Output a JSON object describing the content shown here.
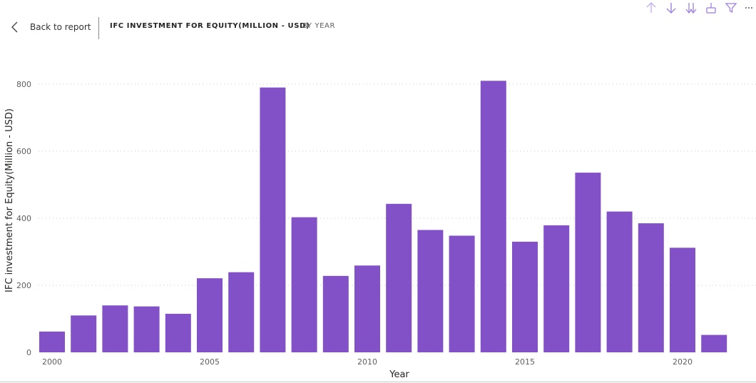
{
  "header": {
    "back_label": "Back to report",
    "title": "IFC INVESTMENT FOR EQUITY(MILLION - USD)",
    "subtitle": "BY YEAR"
  },
  "toolbar": {
    "icons": [
      "arrow-up-icon",
      "arrow-down-icon",
      "double-arrow-down-icon",
      "expand-hierarchy-icon",
      "filter-icon",
      "more-options-icon"
    ],
    "accent_color": "#c4b0ea"
  },
  "chart_data": {
    "type": "bar",
    "x": [
      2000,
      2001,
      2002,
      2003,
      2004,
      2005,
      2006,
      2007,
      2008,
      2009,
      2010,
      2011,
      2012,
      2013,
      2014,
      2015,
      2016,
      2017,
      2018,
      2019,
      2020,
      2021
    ],
    "values": [
      62,
      110,
      140,
      137,
      115,
      221,
      239,
      790,
      403,
      228,
      259,
      443,
      365,
      348,
      810,
      330,
      379,
      536,
      420,
      385,
      312,
      52
    ],
    "xlabel": "Year",
    "ylabel": "IFC investment for Equity(Million - USD)",
    "ylim": [
      0,
      800
    ],
    "yticks": [
      "0",
      "200",
      "400",
      "600",
      "800"
    ],
    "xticks": [
      "2000",
      "2005",
      "2010",
      "2015",
      "2020"
    ],
    "bar_color": "#8251c7",
    "grid": true
  }
}
